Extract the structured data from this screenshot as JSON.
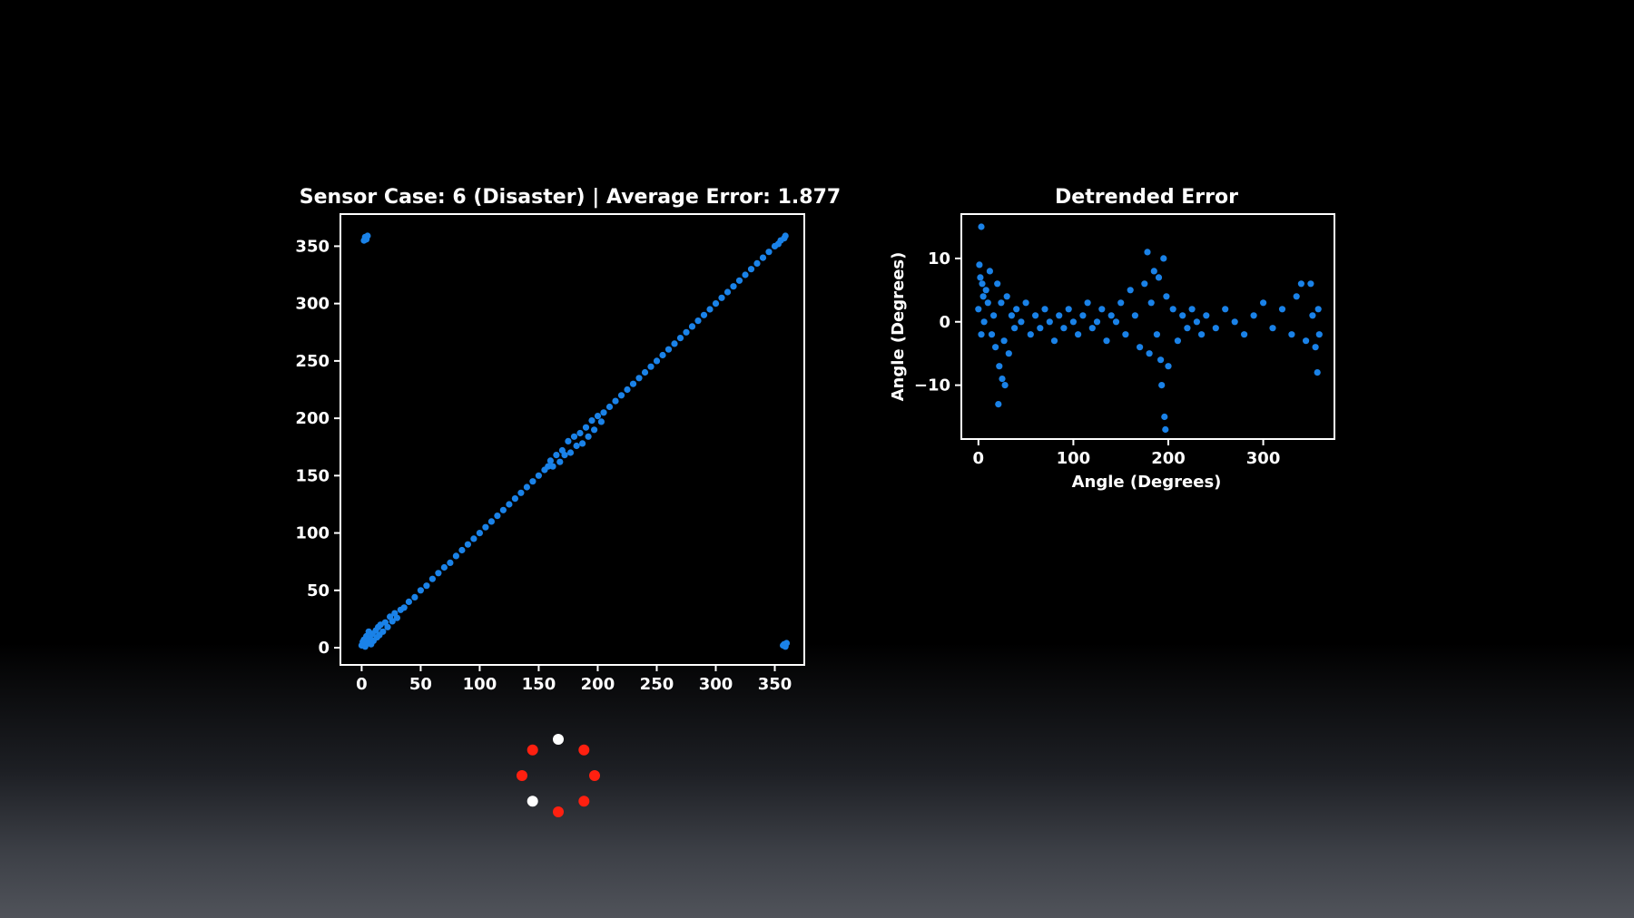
{
  "chart_data": [
    {
      "type": "scatter",
      "title": "Sensor Case: 6 (Disaster)  |  Average Error: 1.877",
      "xlabel": "",
      "ylabel": "",
      "xlim": [
        -18,
        375
      ],
      "ylim": [
        -15,
        378
      ],
      "xticks": [
        0,
        50,
        100,
        150,
        200,
        250,
        300,
        350
      ],
      "yticks": [
        0,
        50,
        100,
        150,
        200,
        250,
        300,
        350
      ],
      "x_tick_labels": [
        "0",
        "50",
        "100",
        "150",
        "200",
        "250",
        "300",
        "350"
      ],
      "y_tick_labels": [
        "0",
        "50",
        "100",
        "150",
        "200",
        "250",
        "300",
        "350"
      ],
      "grid": false,
      "color": "#1a82e8",
      "series": [
        {
          "points": [
            [
              0,
              2
            ],
            [
              1,
              5
            ],
            [
              2,
              7
            ],
            [
              3,
              1
            ],
            [
              4,
              10
            ],
            [
              5,
              4
            ],
            [
              6,
              14
            ],
            [
              7,
              8
            ],
            [
              8,
              3
            ],
            [
              9,
              12
            ],
            [
              10,
              6
            ],
            [
              12,
              15
            ],
            [
              13,
              9
            ],
            [
              14,
              18
            ],
            [
              15,
              11
            ],
            [
              16,
              20
            ],
            [
              18,
              14
            ],
            [
              20,
              22
            ],
            [
              22,
              18
            ],
            [
              24,
              27
            ],
            [
              26,
              23
            ],
            [
              28,
              30
            ],
            [
              30,
              26
            ],
            [
              33,
              33
            ],
            [
              36,
              35
            ],
            [
              40,
              40
            ],
            [
              45,
              44
            ],
            [
              50,
              50
            ],
            [
              55,
              54
            ],
            [
              60,
              60
            ],
            [
              65,
              65
            ],
            [
              70,
              70
            ],
            [
              75,
              74
            ],
            [
              80,
              80
            ],
            [
              85,
              85
            ],
            [
              90,
              90
            ],
            [
              95,
              95
            ],
            [
              100,
              100
            ],
            [
              105,
              105
            ],
            [
              110,
              110
            ],
            [
              115,
              115
            ],
            [
              120,
              120
            ],
            [
              125,
              125
            ],
            [
              130,
              130
            ],
            [
              135,
              135
            ],
            [
              140,
              140
            ],
            [
              145,
              145
            ],
            [
              150,
              150
            ],
            [
              155,
              155
            ],
            [
              158,
              158
            ],
            [
              160,
              163
            ],
            [
              162,
              158
            ],
            [
              165,
              168
            ],
            [
              168,
              162
            ],
            [
              170,
              172
            ],
            [
              172,
              168
            ],
            [
              175,
              180
            ],
            [
              177,
              170
            ],
            [
              180,
              184
            ],
            [
              182,
              176
            ],
            [
              185,
              187
            ],
            [
              187,
              178
            ],
            [
              190,
              192
            ],
            [
              192,
              184
            ],
            [
              195,
              198
            ],
            [
              197,
              190
            ],
            [
              200,
              202
            ],
            [
              203,
              197
            ],
            [
              205,
              205
            ],
            [
              210,
              210
            ],
            [
              215,
              215
            ],
            [
              220,
              220
            ],
            [
              225,
              225
            ],
            [
              230,
              230
            ],
            [
              235,
              235
            ],
            [
              240,
              240
            ],
            [
              245,
              245
            ],
            [
              250,
              250
            ],
            [
              255,
              255
            ],
            [
              260,
              260
            ],
            [
              265,
              265
            ],
            [
              270,
              270
            ],
            [
              275,
              275
            ],
            [
              280,
              280
            ],
            [
              285,
              285
            ],
            [
              290,
              290
            ],
            [
              295,
              295
            ],
            [
              300,
              300
            ],
            [
              305,
              305
            ],
            [
              310,
              310
            ],
            [
              315,
              315
            ],
            [
              320,
              320
            ],
            [
              325,
              325
            ],
            [
              330,
              330
            ],
            [
              335,
              335
            ],
            [
              340,
              340
            ],
            [
              345,
              345
            ],
            [
              350,
              350
            ],
            [
              353,
              352
            ],
            [
              355,
              355
            ],
            [
              358,
              357
            ],
            [
              359,
              359
            ],
            [
              2,
              355
            ],
            [
              3,
              358
            ],
            [
              4,
              356
            ],
            [
              5,
              359
            ],
            [
              357,
              2
            ],
            [
              358,
              3
            ],
            [
              359,
              1
            ],
            [
              360,
              4
            ]
          ]
        }
      ]
    },
    {
      "type": "scatter",
      "title": "Detrended Error",
      "xlabel": "Angle (Degrees)",
      "ylabel": "Angle (Degrees)",
      "xlim": [
        -18,
        375
      ],
      "ylim": [
        -18.5,
        17
      ],
      "xticks": [
        0,
        100,
        200,
        300
      ],
      "yticks": [
        10,
        0,
        -10
      ],
      "x_tick_labels": [
        "0",
        "100",
        "200",
        "300"
      ],
      "y_tick_labels": [
        "10",
        "0",
        "−10"
      ],
      "grid": false,
      "color": "#1a82e8",
      "series": [
        {
          "points": [
            [
              3,
              15
            ],
            [
              1,
              9
            ],
            [
              2,
              7
            ],
            [
              4,
              6
            ],
            [
              5,
              4
            ],
            [
              0,
              2
            ],
            [
              6,
              0
            ],
            [
              3,
              -2
            ],
            [
              8,
              5
            ],
            [
              10,
              3
            ],
            [
              12,
              8
            ],
            [
              14,
              -2
            ],
            [
              16,
              1
            ],
            [
              18,
              -4
            ],
            [
              20,
              6
            ],
            [
              21,
              -13
            ],
            [
              22,
              -7
            ],
            [
              24,
              3
            ],
            [
              25,
              -9
            ],
            [
              27,
              -3
            ],
            [
              28,
              -10
            ],
            [
              30,
              4
            ],
            [
              32,
              -5
            ],
            [
              35,
              1
            ],
            [
              38,
              -1
            ],
            [
              40,
              2
            ],
            [
              45,
              0
            ],
            [
              50,
              3
            ],
            [
              55,
              -2
            ],
            [
              60,
              1
            ],
            [
              65,
              -1
            ],
            [
              70,
              2
            ],
            [
              75,
              0
            ],
            [
              80,
              -3
            ],
            [
              85,
              1
            ],
            [
              90,
              -1
            ],
            [
              95,
              2
            ],
            [
              100,
              0
            ],
            [
              105,
              -2
            ],
            [
              110,
              1
            ],
            [
              115,
              3
            ],
            [
              120,
              -1
            ],
            [
              125,
              0
            ],
            [
              130,
              2
            ],
            [
              135,
              -3
            ],
            [
              140,
              1
            ],
            [
              145,
              0
            ],
            [
              150,
              3
            ],
            [
              155,
              -2
            ],
            [
              160,
              5
            ],
            [
              165,
              1
            ],
            [
              170,
              -4
            ],
            [
              175,
              6
            ],
            [
              178,
              11
            ],
            [
              180,
              -5
            ],
            [
              182,
              3
            ],
            [
              185,
              8
            ],
            [
              188,
              -2
            ],
            [
              190,
              7
            ],
            [
              192,
              -6
            ],
            [
              193,
              -10
            ],
            [
              195,
              10
            ],
            [
              196,
              -15
            ],
            [
              197,
              -17
            ],
            [
              198,
              4
            ],
            [
              200,
              -7
            ],
            [
              205,
              2
            ],
            [
              210,
              -3
            ],
            [
              215,
              1
            ],
            [
              220,
              -1
            ],
            [
              225,
              2
            ],
            [
              230,
              0
            ],
            [
              235,
              -2
            ],
            [
              240,
              1
            ],
            [
              250,
              -1
            ],
            [
              260,
              2
            ],
            [
              270,
              0
            ],
            [
              280,
              -2
            ],
            [
              290,
              1
            ],
            [
              300,
              3
            ],
            [
              310,
              -1
            ],
            [
              320,
              2
            ],
            [
              330,
              -2
            ],
            [
              335,
              4
            ],
            [
              340,
              6
            ],
            [
              345,
              -3
            ],
            [
              350,
              6
            ],
            [
              352,
              1
            ],
            [
              355,
              -4
            ],
            [
              357,
              -8
            ],
            [
              358,
              2
            ],
            [
              359,
              -2
            ]
          ]
        }
      ]
    }
  ],
  "loading_indicator": {
    "dot_colors": [
      "#ffffff",
      "#ff2010",
      "#ff2010",
      "#ff2010",
      "#ff2010",
      "#ffffff",
      "#ff2010",
      "#ff2010"
    ]
  }
}
